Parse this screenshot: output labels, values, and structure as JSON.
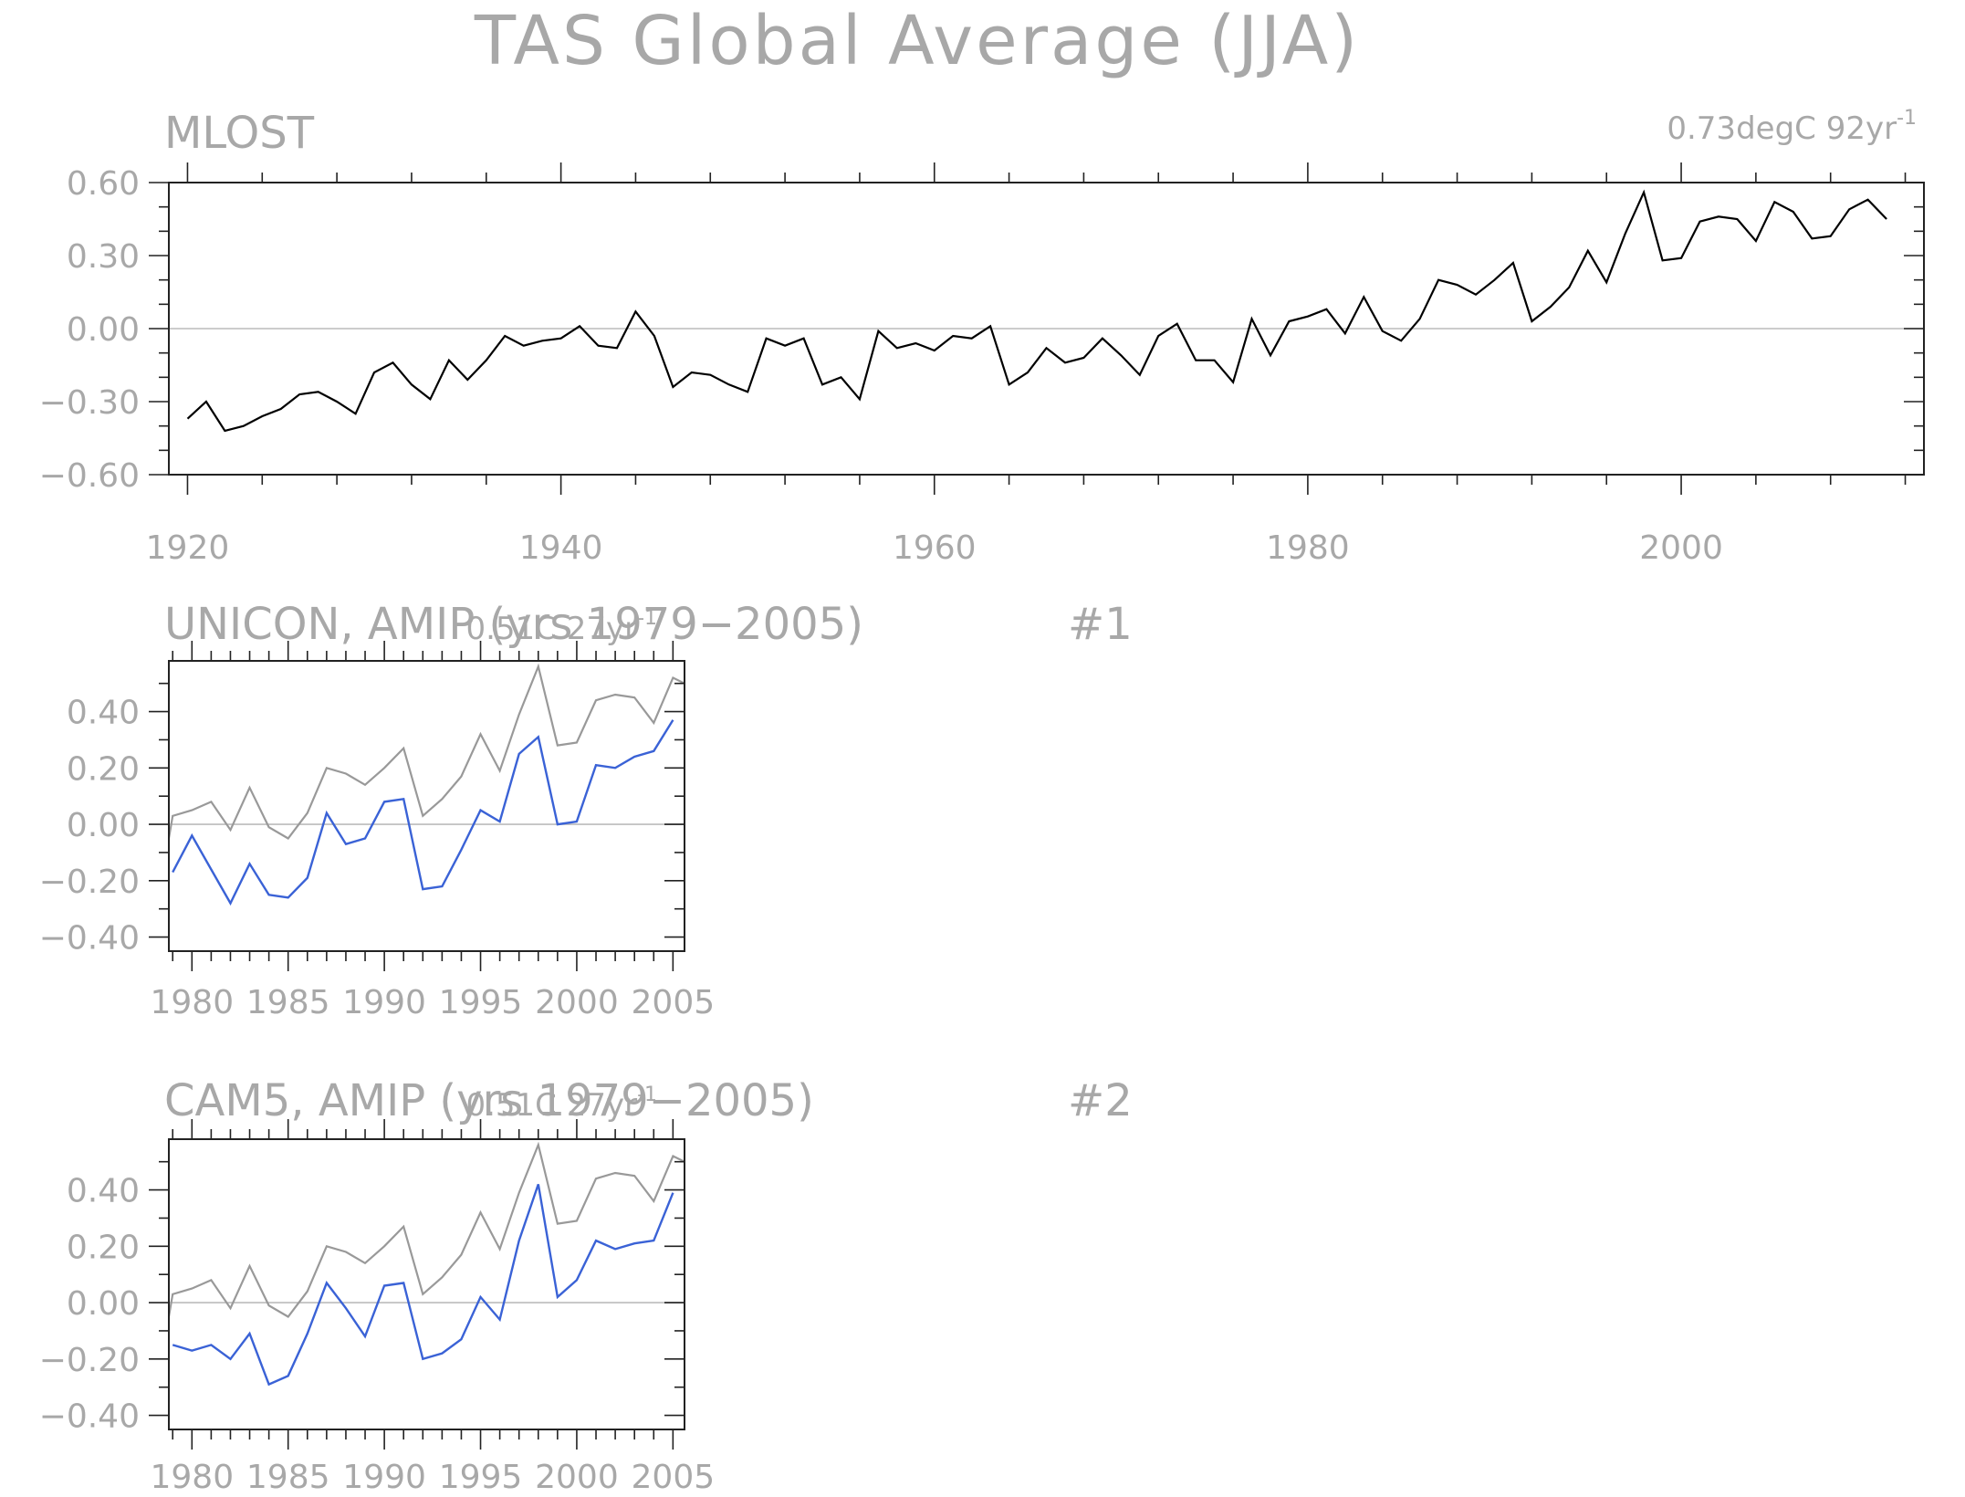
{
  "figure": {
    "title": "TAS Global Average (JJA)"
  },
  "colors": {
    "obs": "#000000",
    "obs_reference": "#999999",
    "model": "#3a62d6"
  },
  "chart_data": [
    {
      "id": "mlost",
      "type": "line",
      "title": "MLOST",
      "trend_label": "0.73degC 92yr",
      "trend_label_sup": "-1",
      "xlabel": "",
      "ylabel": "",
      "xlim": [
        1919,
        2013
      ],
      "ylim": [
        -0.6,
        0.6
      ],
      "xticks": [
        1920,
        1940,
        1960,
        1980,
        2000
      ],
      "yticks": [
        -0.6,
        -0.3,
        0.0,
        0.3,
        0.6
      ],
      "ytick_labels": [
        "−0.60",
        "−0.30",
        "0.00",
        "0.30",
        "0.60"
      ],
      "grid": false,
      "x_start": 1920,
      "series": [
        {
          "values": [
            -0.37,
            -0.3,
            -0.42,
            -0.4,
            -0.36,
            -0.33,
            -0.27,
            -0.26,
            -0.3,
            -0.35,
            -0.18,
            -0.14,
            -0.23,
            -0.29,
            -0.13,
            -0.21,
            -0.13,
            -0.03,
            -0.07,
            -0.05,
            -0.04,
            0.01,
            -0.07,
            -0.08,
            0.07,
            -0.03,
            -0.24,
            -0.18,
            -0.19,
            -0.23,
            -0.26,
            -0.04,
            -0.07,
            -0.04,
            -0.23,
            -0.2,
            -0.29,
            -0.01,
            -0.08,
            -0.06,
            -0.09,
            -0.03,
            -0.04,
            0.01,
            -0.23,
            -0.18,
            -0.08,
            -0.14,
            -0.12,
            -0.04,
            -0.11,
            -0.19,
            -0.03,
            0.02,
            -0.13,
            -0.13,
            -0.22,
            0.04,
            -0.11,
            0.03,
            0.05,
            0.08,
            -0.02,
            0.13,
            -0.01,
            -0.05,
            0.04,
            0.2,
            0.18,
            0.14,
            0.2,
            0.27,
            0.03,
            0.09,
            0.17,
            0.32,
            0.19,
            0.39,
            0.56,
            0.28,
            0.29,
            0.44,
            0.46,
            0.45,
            0.36,
            0.52,
            0.48,
            0.37,
            0.38,
            0.49,
            0.53,
            0.45
          ]
        }
      ]
    },
    {
      "id": "unicon",
      "type": "line",
      "title": "UNICON, AMIP (yrs 1979−2005)",
      "run_label": "#1",
      "trend_label": "0.51C 27yr",
      "trend_label_sup": "-1",
      "xlabel": "",
      "ylabel": "",
      "xlim": [
        1978.8,
        2005.6
      ],
      "ylim": [
        -0.45,
        0.58
      ],
      "xticks": [
        1980,
        1985,
        1990,
        1995,
        2000,
        2005
      ],
      "yticks": [
        -0.4,
        -0.2,
        0.0,
        0.2,
        0.4
      ],
      "ytick_labels": [
        "−0.40",
        "−0.20",
        "0.00",
        "0.20",
        "0.40"
      ],
      "grid": false,
      "series": [
        {
          "role": "obs_reference",
          "x": [
            1978.8,
            1979,
            1980,
            1981,
            1982,
            1983,
            1984,
            1985,
            1986,
            1987,
            1988,
            1989,
            1990,
            1991,
            1992,
            1993,
            1994,
            1995,
            1996,
            1997,
            1998,
            1999,
            2000,
            2001,
            2002,
            2003,
            2004,
            2005,
            2005.6
          ],
          "values": [
            -0.05,
            0.03,
            0.05,
            0.08,
            -0.02,
            0.13,
            -0.01,
            -0.05,
            0.04,
            0.2,
            0.18,
            0.14,
            0.2,
            0.27,
            0.03,
            0.09,
            0.17,
            0.32,
            0.19,
            0.39,
            0.56,
            0.28,
            0.29,
            0.44,
            0.46,
            0.45,
            0.36,
            0.52,
            0.5
          ]
        },
        {
          "role": "model",
          "x": [
            1979,
            1980,
            1981,
            1982,
            1983,
            1984,
            1985,
            1986,
            1987,
            1988,
            1989,
            1990,
            1991,
            1992,
            1993,
            1994,
            1995,
            1996,
            1997,
            1998,
            1999,
            2000,
            2001,
            2002,
            2003,
            2004,
            2005
          ],
          "values": [
            -0.17,
            -0.04,
            -0.16,
            -0.28,
            -0.14,
            -0.25,
            -0.26,
            -0.19,
            0.04,
            -0.07,
            -0.05,
            0.08,
            0.09,
            -0.23,
            -0.22,
            -0.09,
            0.05,
            0.01,
            0.25,
            0.31,
            0.0,
            0.01,
            0.21,
            0.2,
            0.24,
            0.26,
            0.37
          ]
        }
      ]
    },
    {
      "id": "cam5",
      "type": "line",
      "title": "CAM5, AMIP (yrs 1979−2005)",
      "run_label": "#2",
      "trend_label": "0.51C 27yr",
      "trend_label_sup": "-1",
      "xlabel": "",
      "ylabel": "",
      "xlim": [
        1978.8,
        2005.6
      ],
      "ylim": [
        -0.45,
        0.58
      ],
      "xticks": [
        1980,
        1985,
        1990,
        1995,
        2000,
        2005
      ],
      "yticks": [
        -0.4,
        -0.2,
        0.0,
        0.2,
        0.4
      ],
      "ytick_labels": [
        "−0.40",
        "−0.20",
        "0.00",
        "0.20",
        "0.40"
      ],
      "grid": false,
      "series": [
        {
          "role": "obs_reference",
          "x": [
            1978.8,
            1979,
            1980,
            1981,
            1982,
            1983,
            1984,
            1985,
            1986,
            1987,
            1988,
            1989,
            1990,
            1991,
            1992,
            1993,
            1994,
            1995,
            1996,
            1997,
            1998,
            1999,
            2000,
            2001,
            2002,
            2003,
            2004,
            2005,
            2005.6
          ],
          "values": [
            -0.05,
            0.03,
            0.05,
            0.08,
            -0.02,
            0.13,
            -0.01,
            -0.05,
            0.04,
            0.2,
            0.18,
            0.14,
            0.2,
            0.27,
            0.03,
            0.09,
            0.17,
            0.32,
            0.19,
            0.39,
            0.56,
            0.28,
            0.29,
            0.44,
            0.46,
            0.45,
            0.36,
            0.52,
            0.5
          ]
        },
        {
          "role": "model",
          "x": [
            1979,
            1980,
            1981,
            1982,
            1983,
            1984,
            1985,
            1986,
            1987,
            1988,
            1989,
            1990,
            1991,
            1992,
            1993,
            1994,
            1995,
            1996,
            1997,
            1998,
            1999,
            2000,
            2001,
            2002,
            2003,
            2004,
            2005
          ],
          "values": [
            -0.15,
            -0.17,
            -0.15,
            -0.2,
            -0.11,
            -0.29,
            -0.26,
            -0.11,
            0.07,
            -0.02,
            -0.12,
            0.06,
            0.07,
            -0.2,
            -0.18,
            -0.13,
            0.02,
            -0.06,
            0.22,
            0.42,
            0.02,
            0.08,
            0.22,
            0.19,
            0.21,
            0.22,
            0.39
          ]
        }
      ]
    }
  ]
}
